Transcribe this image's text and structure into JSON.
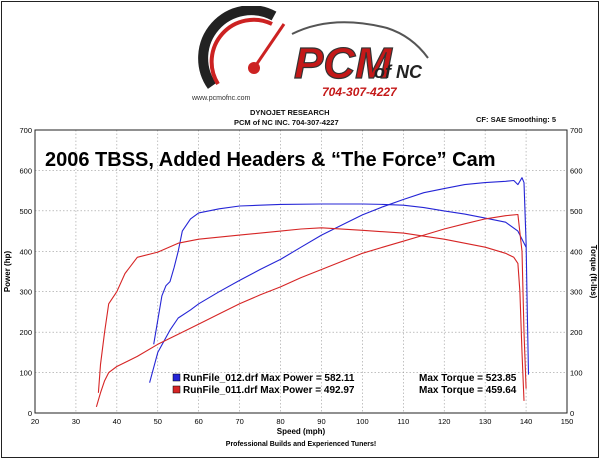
{
  "header": {
    "logo_text": "PCM",
    "logo_suffix": "of NC",
    "logo_phone": "704-307-4227",
    "logo_url": "www.pcmofnc.com",
    "dyno_line1": "DYNOJET RESEARCH",
    "dyno_line2": "PCM of NC INC. 704-307-4227",
    "cf_label": "CF: SAE  Smoothing: 5"
  },
  "footer": {
    "tagline": "Professional Builds and Experienced Tuners!"
  },
  "colors": {
    "run_012": "#2525d6",
    "run_011": "#d62525",
    "grid": "#9a9a9a",
    "plot_bg": "#ffffff"
  },
  "chart_data": {
    "type": "line",
    "title": "2006 TBSS, Added Headers & “The Force” Cam",
    "xlabel": "Speed (mph)",
    "ylabel_left": "Power (hp)",
    "ylabel_right": "Torque (ft-lbs)",
    "xlim": [
      20,
      150
    ],
    "ylim": [
      0,
      700
    ],
    "x_ticks": [
      "20",
      "30",
      "40",
      "50",
      "60",
      "70",
      "80",
      "90",
      "100",
      "110",
      "120",
      "130",
      "140",
      "150"
    ],
    "y_ticks": [
      "0",
      "100",
      "200",
      "300",
      "400",
      "500",
      "600",
      "700"
    ],
    "grid": true,
    "legend_placement": "bottom-left",
    "legend": [
      {
        "text": "RunFile_012.drf Max Power = 582.11",
        "torque_text": "Max Torque = 523.85",
        "color": "#2525d6"
      },
      {
        "text": "RunFile_011.drf Max Power = 492.97",
        "torque_text": "Max Torque = 459.64",
        "color": "#d62525"
      }
    ],
    "series": [
      {
        "run": "RunFile_012.drf",
        "quantity": "Power",
        "color": "#2525d6",
        "x": [
          48,
          50,
          53,
          55,
          58,
          60,
          65,
          70,
          75,
          80,
          85,
          90,
          95,
          100,
          105,
          110,
          115,
          120,
          125,
          130,
          135,
          137,
          138,
          139,
          139.5,
          140,
          140.3,
          140.6
        ],
        "y": [
          75,
          150,
          205,
          235,
          255,
          270,
          300,
          328,
          355,
          380,
          410,
          440,
          465,
          490,
          510,
          528,
          545,
          555,
          565,
          570,
          573,
          575,
          565,
          582,
          570,
          420,
          250,
          95
        ]
      },
      {
        "run": "RunFile_012.drf",
        "quantity": "Torque",
        "color": "#2525d6",
        "x": [
          49,
          50,
          51,
          52,
          53,
          54,
          55,
          56,
          58,
          60,
          65,
          70,
          75,
          80,
          90,
          100,
          105,
          110,
          115,
          120,
          125,
          130,
          135,
          138,
          140
        ],
        "y": [
          170,
          230,
          290,
          315,
          325,
          360,
          400,
          450,
          480,
          495,
          505,
          512,
          514,
          516,
          517,
          517,
          516,
          514,
          508,
          500,
          492,
          482,
          472,
          450,
          410
        ]
      },
      {
        "run": "RunFile_011.drf",
        "quantity": "Power",
        "color": "#d62525",
        "x": [
          35,
          36,
          37,
          38,
          40,
          45,
          50,
          55,
          60,
          65,
          70,
          75,
          80,
          85,
          90,
          95,
          100,
          105,
          110,
          115,
          120,
          125,
          130,
          135,
          138,
          139,
          139.5,
          140
        ],
        "y": [
          15,
          50,
          80,
          100,
          115,
          140,
          170,
          195,
          220,
          245,
          270,
          292,
          312,
          335,
          355,
          375,
          395,
          410,
          425,
          440,
          455,
          468,
          480,
          488,
          491,
          400,
          200,
          60
        ]
      },
      {
        "run": "RunFile_011.drf",
        "quantity": "Torque",
        "color": "#d62525",
        "x": [
          35.5,
          36,
          37,
          38,
          40,
          42,
          45,
          50,
          55,
          60,
          70,
          80,
          85,
          90,
          100,
          110,
          120,
          130,
          135,
          137,
          138,
          138.5,
          139,
          139.5
        ],
        "y": [
          50,
          120,
          200,
          270,
          300,
          345,
          385,
          398,
          420,
          430,
          440,
          450,
          455,
          458,
          452,
          445,
          430,
          410,
          395,
          385,
          370,
          300,
          150,
          30
        ]
      }
    ]
  }
}
